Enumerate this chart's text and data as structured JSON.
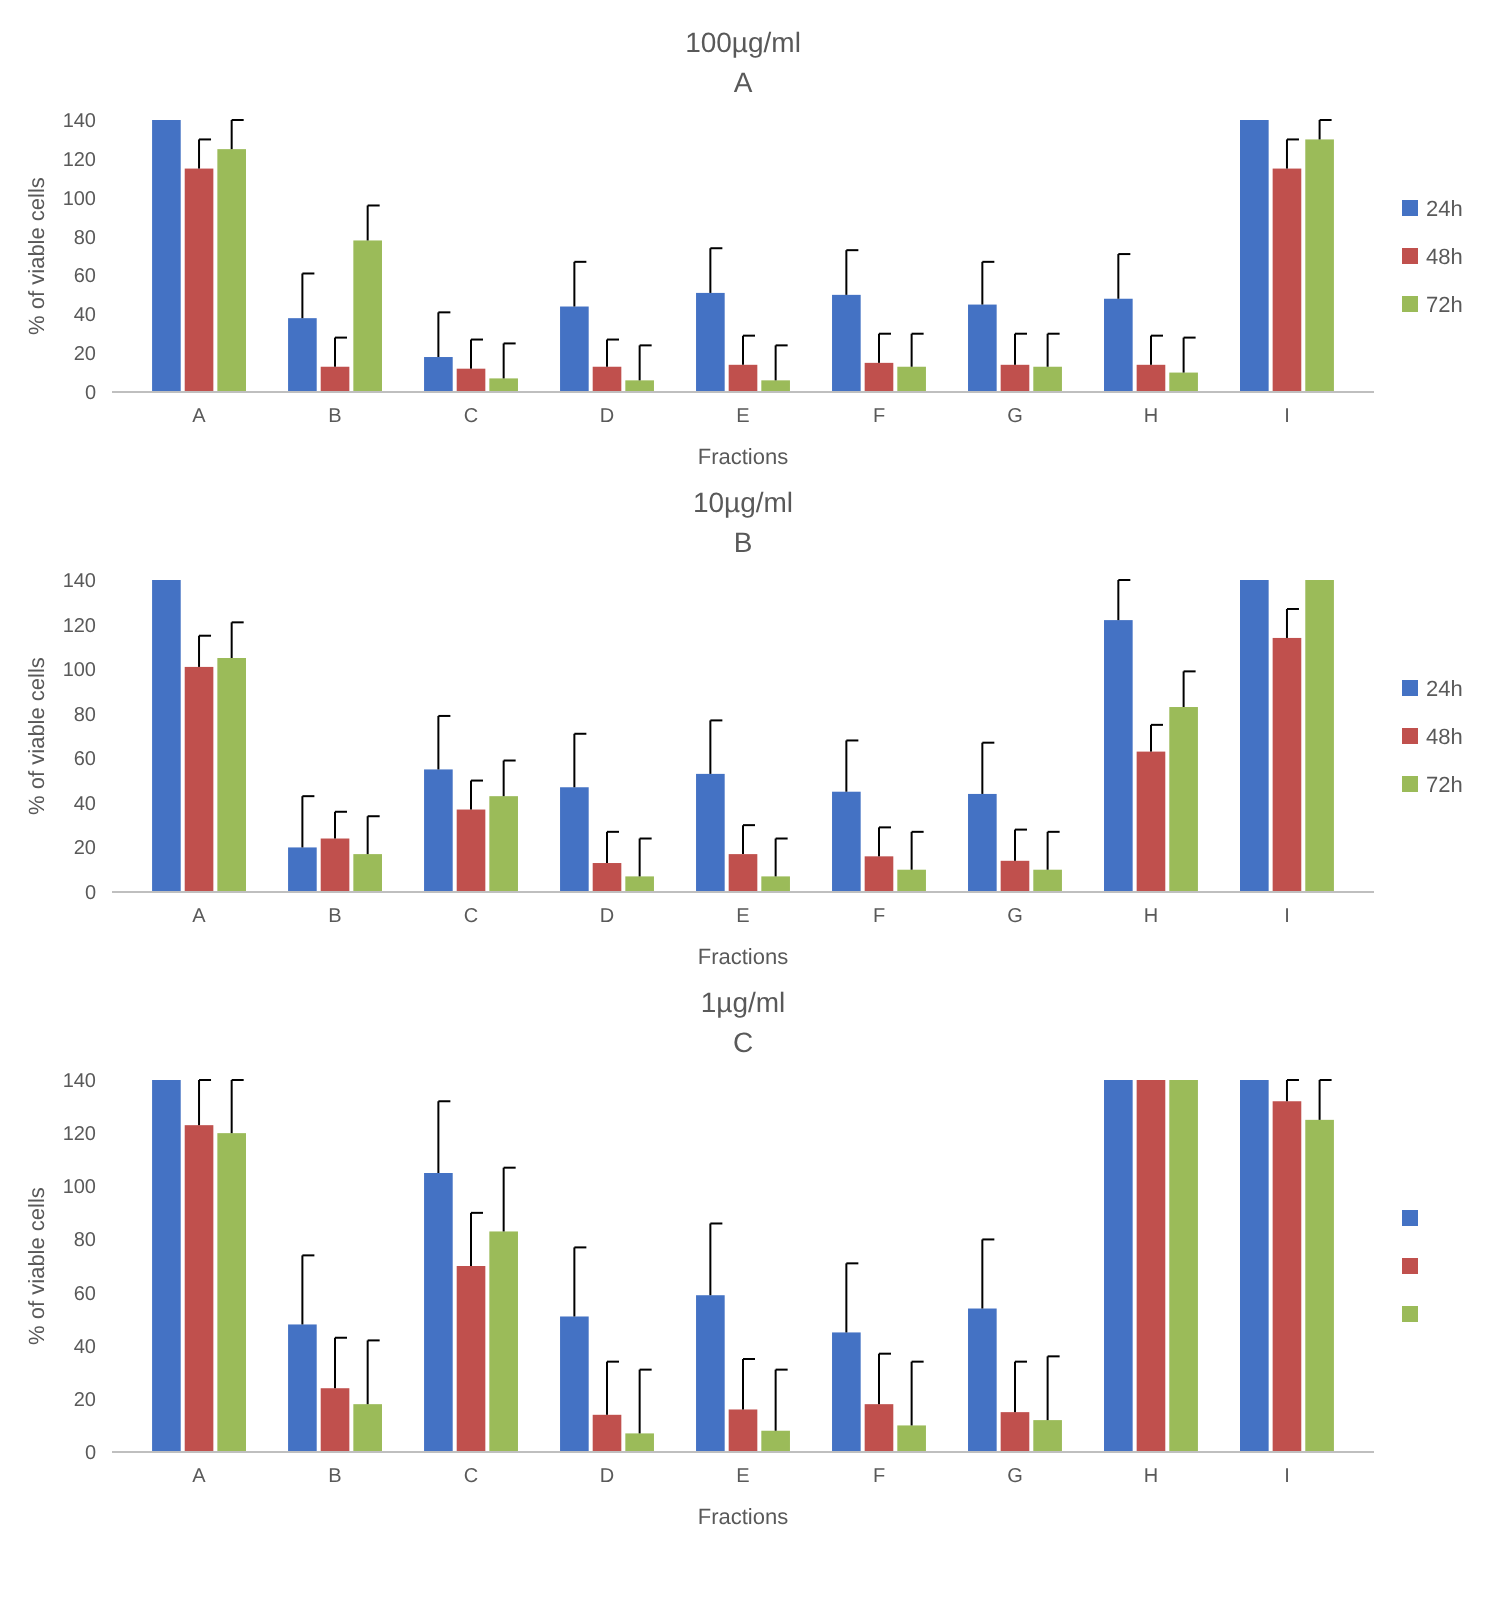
{
  "chart_data": [
    {
      "type": "bar",
      "title": "100µg/ml",
      "subtitle": "A",
      "xlabel": "Fractions",
      "ylabel": "% of viable cells",
      "categories": [
        "A",
        "B",
        "C",
        "D",
        "E",
        "F",
        "G",
        "H",
        "I"
      ],
      "ylim": [
        0,
        140
      ],
      "yticks": [
        0,
        20,
        40,
        60,
        80,
        100,
        120,
        140
      ],
      "grid": false,
      "legend": "right",
      "series": [
        {
          "name": "24h",
          "color": "#4472c4",
          "values": [
            140,
            38,
            18,
            44,
            51,
            50,
            45,
            48,
            140
          ],
          "errors": [
            null,
            [
              38,
              61
            ],
            [
              18,
              41
            ],
            [
              44,
              67
            ],
            [
              51,
              74
            ],
            [
              50,
              73
            ],
            [
              45,
              67
            ],
            [
              48,
              71
            ],
            null
          ]
        },
        {
          "name": "48h",
          "color": "#c0504d",
          "values": [
            115,
            13,
            12,
            13,
            14,
            15,
            14,
            14,
            115
          ],
          "errors": [
            [
              115,
              130
            ],
            [
              13,
              28
            ],
            [
              12,
              27
            ],
            [
              13,
              27
            ],
            [
              14,
              29
            ],
            [
              15,
              30
            ],
            [
              14,
              30
            ],
            [
              14,
              29
            ],
            [
              115,
              130
            ]
          ]
        },
        {
          "name": "72h",
          "color": "#9bbb59",
          "values": [
            125,
            78,
            7,
            6,
            6,
            13,
            13,
            10,
            130
          ],
          "errors": [
            [
              125,
              140
            ],
            [
              78,
              96
            ],
            [
              7,
              25
            ],
            [
              6,
              24
            ],
            [
              6,
              24
            ],
            [
              13,
              30
            ],
            [
              13,
              30
            ],
            [
              10,
              28
            ],
            [
              130,
              140
            ]
          ]
        }
      ]
    },
    {
      "type": "bar",
      "title": "10µg/ml",
      "subtitle": "B",
      "xlabel": "Fractions",
      "ylabel": "% of viable cells",
      "categories": [
        "A",
        "B",
        "C",
        "D",
        "E",
        "F",
        "G",
        "H",
        "I"
      ],
      "ylim": [
        0,
        140
      ],
      "yticks": [
        0,
        20,
        40,
        60,
        80,
        100,
        120,
        140
      ],
      "grid": false,
      "legend": "right",
      "series": [
        {
          "name": "24h",
          "color": "#4472c4",
          "values": [
            140,
            20,
            55,
            47,
            53,
            45,
            44,
            122,
            140
          ],
          "errors": [
            null,
            [
              20,
              43
            ],
            [
              55,
              79
            ],
            [
              47,
              71
            ],
            [
              53,
              77
            ],
            [
              45,
              68
            ],
            [
              44,
              67
            ],
            [
              122,
              140
            ],
            null
          ]
        },
        {
          "name": "48h",
          "color": "#c0504d",
          "values": [
            101,
            24,
            37,
            13,
            17,
            16,
            14,
            63,
            114
          ],
          "errors": [
            [
              101,
              115
            ],
            [
              24,
              36
            ],
            [
              37,
              50
            ],
            [
              13,
              27
            ],
            [
              17,
              30
            ],
            [
              16,
              29
            ],
            [
              14,
              28
            ],
            [
              63,
              75
            ],
            [
              114,
              127
            ]
          ]
        },
        {
          "name": "72h",
          "color": "#9bbb59",
          "values": [
            105,
            17,
            43,
            7,
            7,
            10,
            10,
            83,
            140
          ],
          "errors": [
            [
              105,
              121
            ],
            [
              17,
              34
            ],
            [
              43,
              59
            ],
            [
              7,
              24
            ],
            [
              7,
              24
            ],
            [
              10,
              27
            ],
            [
              10,
              27
            ],
            [
              83,
              99
            ],
            null
          ]
        }
      ]
    },
    {
      "type": "bar",
      "title": "1µg/ml",
      "subtitle": "C",
      "xlabel": "Fractions",
      "ylabel": "% of viable cells",
      "categories": [
        "A",
        "B",
        "C",
        "D",
        "E",
        "F",
        "G",
        "H",
        "I"
      ],
      "ylim": [
        0,
        140
      ],
      "yticks": [
        0,
        20,
        40,
        60,
        80,
        100,
        120,
        140
      ],
      "grid": false,
      "legend": "right",
      "series": [
        {
          "color": "#4472c4",
          "values": [
            140,
            48,
            105,
            51,
            59,
            45,
            54,
            140,
            140
          ],
          "errors": [
            null,
            [
              48,
              74
            ],
            [
              105,
              132
            ],
            [
              51,
              77
            ],
            [
              59,
              86
            ],
            [
              45,
              71
            ],
            [
              54,
              80
            ],
            null,
            null
          ]
        },
        {
          "color": "#c0504d",
          "values": [
            123,
            24,
            70,
            14,
            16,
            18,
            15,
            140,
            132
          ],
          "errors": [
            [
              123,
              140
            ],
            [
              24,
              43
            ],
            [
              70,
              90
            ],
            [
              14,
              34
            ],
            [
              16,
              35
            ],
            [
              18,
              37
            ],
            [
              15,
              34
            ],
            null,
            [
              132,
              140
            ]
          ]
        },
        {
          "color": "#9bbb59",
          "values": [
            120,
            18,
            83,
            7,
            8,
            10,
            12,
            140,
            125
          ],
          "errors": [
            [
              120,
              140
            ],
            [
              18,
              42
            ],
            [
              83,
              107
            ],
            [
              7,
              31
            ],
            [
              8,
              31
            ],
            [
              10,
              34
            ],
            [
              12,
              36
            ],
            null,
            [
              125,
              140
            ]
          ]
        }
      ]
    }
  ]
}
